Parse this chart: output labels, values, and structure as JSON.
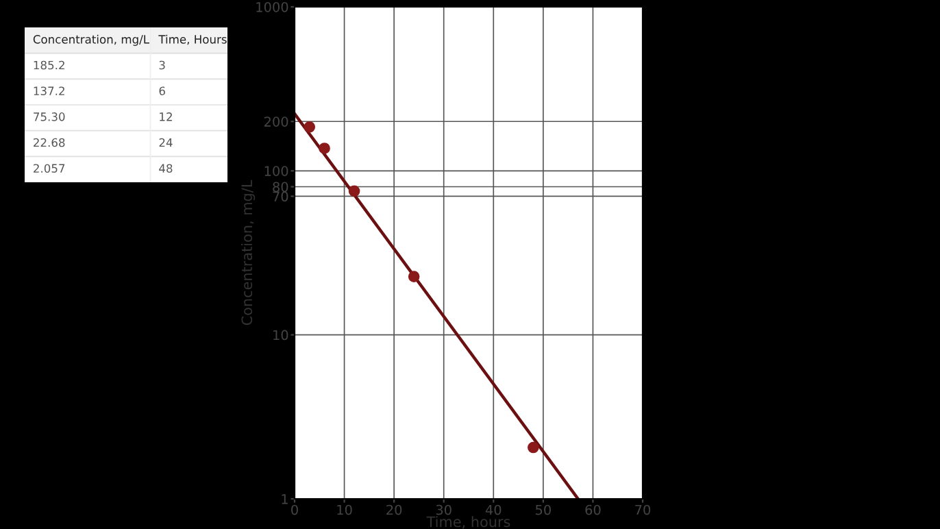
{
  "chart_data": [
    {
      "type": "scatter",
      "xlabel": "Time, hours",
      "ylabel": "Concentration, mg/L",
      "log": "y",
      "xlim": [
        0,
        70
      ],
      "ylim": [
        1,
        1000
      ],
      "xticks": [
        0,
        10,
        20,
        30,
        40,
        50,
        60,
        70
      ],
      "yticks": [
        1,
        10,
        70,
        80,
        100,
        200,
        1000
      ],
      "grid": true,
      "marker": "circle",
      "series": [
        {
          "color": "#8b1a1a",
          "x": [
            3,
            6,
            12,
            24,
            48
          ],
          "values": [
            185.2,
            137.2,
            75.3,
            22.68,
            2.057
          ]
        },
        {
          "type": "line",
          "color": "#6b0f10",
          "x": [
            0,
            57
          ],
          "values": [
            223,
            1
          ],
          "marker": "none",
          "line_style": "solid"
        }
      ]
    },
    {
      "type": "other",
      "annotations": [
        "Concentration, mg/L",
        "Time, Hours",
        "185.2",
        "3",
        "137.2",
        "6",
        "75.30",
        "12",
        "22.68",
        "24",
        "2.057",
        "48"
      ]
    }
  ]
}
